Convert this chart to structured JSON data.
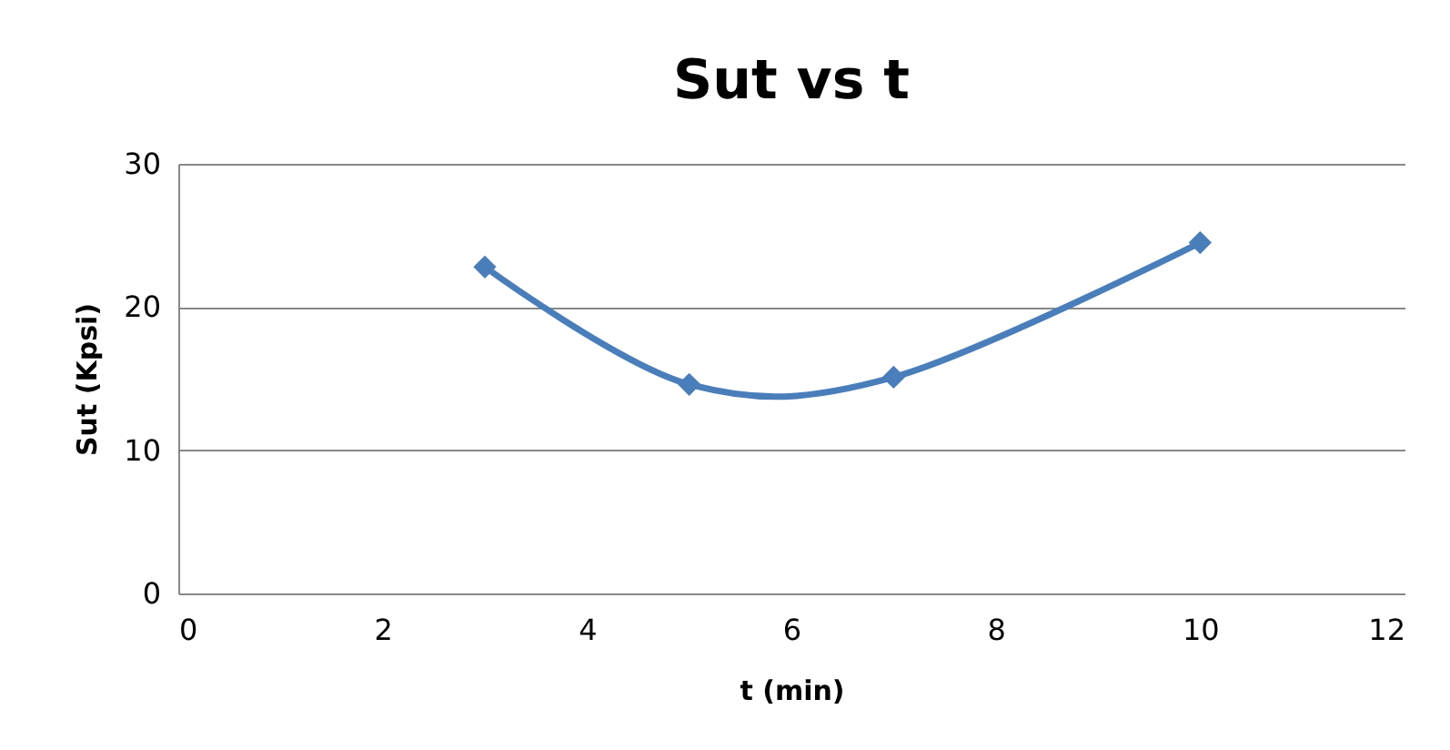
{
  "chart_data": {
    "type": "line",
    "title": "Sut vs t",
    "xlabel": "t (min)",
    "ylabel": "Sut (Kpsi)",
    "x": [
      3,
      5,
      7,
      10
    ],
    "series": [
      {
        "color": "#4a7ebb",
        "values": [
          22.8,
          14.6,
          15.1,
          24.5
        ]
      }
    ],
    "xlim": [
      0,
      12
    ],
    "xticks": [
      0,
      2,
      4,
      6,
      8,
      10,
      12
    ],
    "ylim": [
      0,
      30
    ],
    "yticks": [
      0,
      10,
      20,
      30
    ],
    "grid": "y",
    "marker": "diamond",
    "line_style": "solid"
  }
}
